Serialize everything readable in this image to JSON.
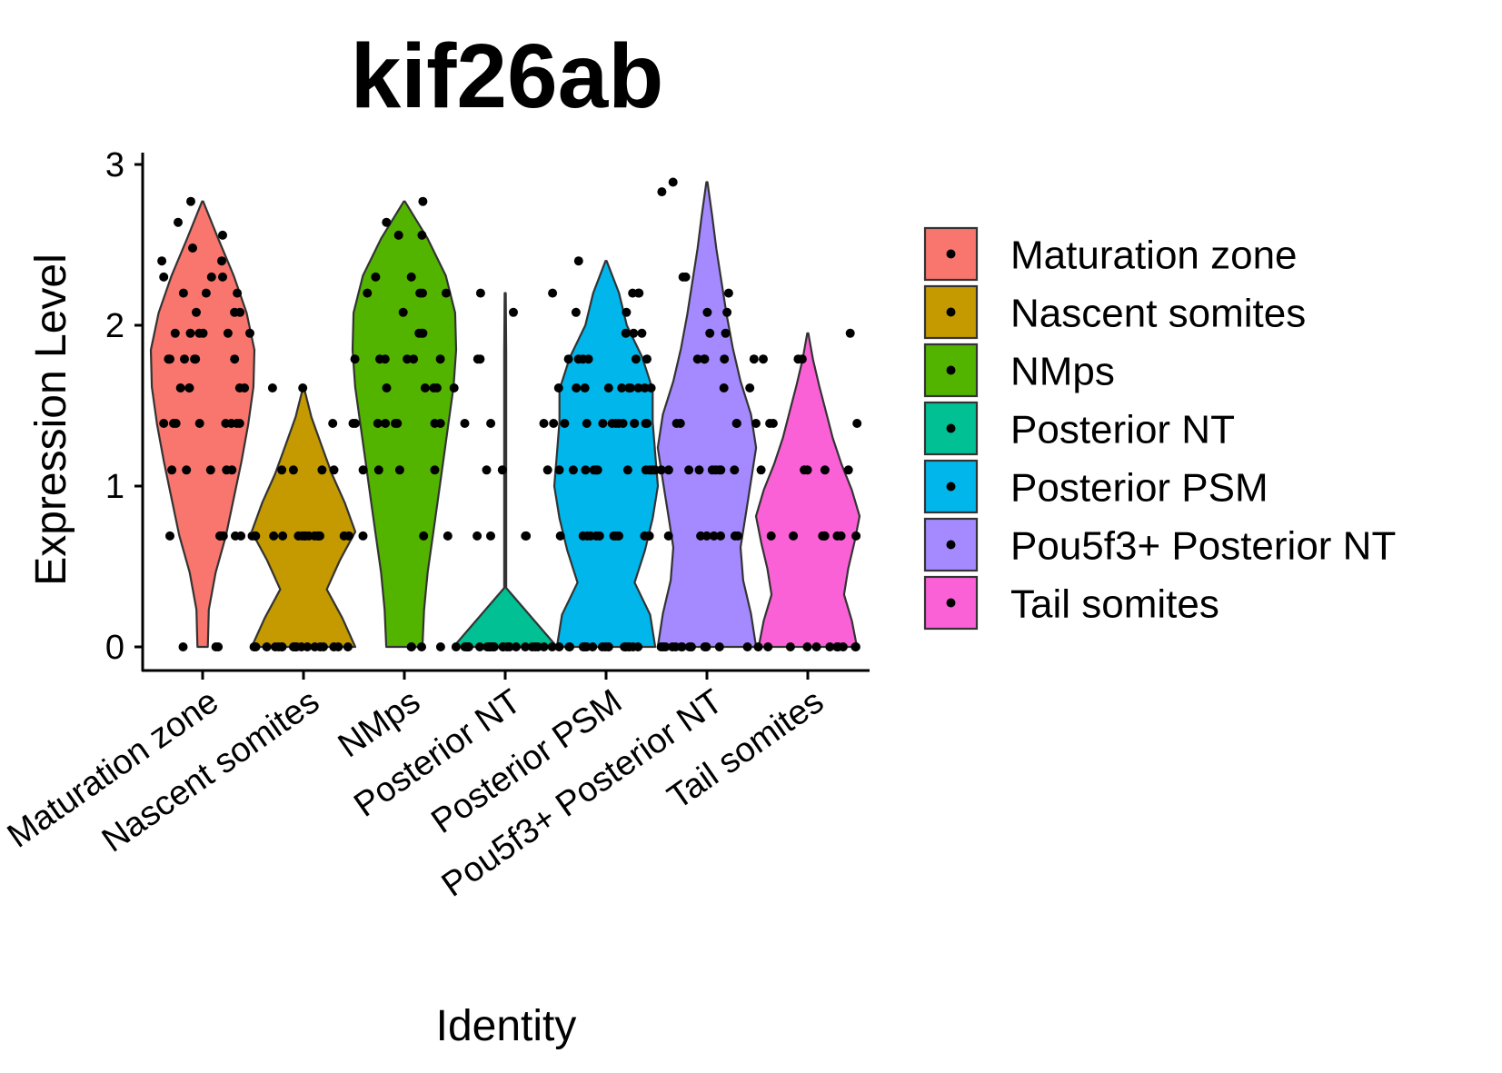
{
  "chart_data": {
    "type": "violin",
    "title": "kif26ab",
    "xlabel": "Identity",
    "ylabel": "Expression Level",
    "ylim": [
      0,
      3
    ],
    "yticks": [
      "0",
      "1",
      "2",
      "3"
    ],
    "legend_position": "right",
    "grid": false,
    "categories": [
      "Maturation zone",
      "Nascent somites",
      "NMps",
      "Posterior NT",
      "Posterior PSM",
      "Pou5f3+ Posterior NT",
      "Tail somites"
    ],
    "series": [
      {
        "name": "Maturation zone",
        "color": "#F8766D",
        "max": 2.77,
        "density": [
          0.1,
          0.12,
          0.25,
          0.45,
          0.6,
          0.75,
          0.88,
          0.98,
          1.0,
          0.85,
          0.6,
          0.3,
          0.0
        ],
        "points": [
          0,
          0,
          0,
          0.69,
          0.69,
          0.69,
          0.69,
          0.69,
          0.69,
          0.69,
          1.1,
          1.1,
          1.1,
          1.1,
          1.1,
          1.39,
          1.39,
          1.39,
          1.39,
          1.39,
          1.39,
          1.39,
          1.39,
          1.61,
          1.61,
          1.61,
          1.61,
          1.61,
          1.79,
          1.79,
          1.79,
          1.79,
          1.79,
          1.79,
          1.95,
          1.95,
          1.95,
          1.95,
          1.95,
          1.95,
          2.08,
          2.08,
          2.08,
          2.2,
          2.2,
          2.2,
          2.3,
          2.3,
          2.3,
          2.4,
          2.4,
          2.48,
          2.56,
          2.64,
          2.77
        ]
      },
      {
        "name": "Nascent somites",
        "color": "#C49A00",
        "max": 1.61,
        "density": [
          1.0,
          0.75,
          0.45,
          0.7,
          1.0,
          0.8,
          0.55,
          0.35,
          0.15,
          0.0
        ],
        "points": [
          0,
          0,
          0,
          0,
          0,
          0,
          0,
          0,
          0,
          0,
          0,
          0,
          0,
          0,
          0,
          0,
          0,
          0,
          0,
          0.69,
          0.69,
          0.69,
          0.69,
          0.69,
          0.69,
          0.69,
          0.69,
          0.69,
          0.69,
          0.69,
          0.69,
          0.69,
          0.69,
          0.69,
          1.1,
          1.1,
          1.1,
          1.1,
          1.39,
          1.39,
          1.61,
          1.61
        ]
      },
      {
        "name": "NMps",
        "color": "#53B400",
        "max": 2.77,
        "density": [
          0.35,
          0.38,
          0.45,
          0.55,
          0.65,
          0.75,
          0.85,
          0.95,
          1.0,
          0.98,
          0.8,
          0.45,
          0.0
        ],
        "points": [
          0,
          0,
          0,
          0,
          0.69,
          0.69,
          0.69,
          1.1,
          1.1,
          1.1,
          1.1,
          1.39,
          1.39,
          1.39,
          1.39,
          1.39,
          1.39,
          1.39,
          1.61,
          1.61,
          1.61,
          1.61,
          1.61,
          1.79,
          1.79,
          1.79,
          1.79,
          1.79,
          1.79,
          1.95,
          1.95,
          1.95,
          2.08,
          2.2,
          2.2,
          2.2,
          2.2,
          2.3,
          2.3,
          2.56,
          2.56,
          2.64,
          2.77
        ]
      },
      {
        "name": "Posterior NT",
        "color": "#00C094",
        "max": 2.2,
        "density": [
          1.0,
          0.02,
          0.02,
          0.02,
          0.02,
          0.02,
          0.0
        ],
        "points": [
          0,
          0,
          0,
          0,
          0,
          0,
          0,
          0,
          0,
          0,
          0,
          0,
          0,
          0,
          0,
          0,
          0,
          0,
          0,
          0,
          0,
          0,
          0,
          0,
          0,
          0.69,
          0.69,
          0.69,
          0.69,
          1.1,
          1.1,
          1.1,
          1.39,
          1.39,
          1.39,
          1.39,
          1.79,
          1.79,
          2.08,
          2.2,
          2.2
        ]
      },
      {
        "name": "Posterior PSM",
        "color": "#00B6EB",
        "max": 2.4,
        "density": [
          0.95,
          0.85,
          0.55,
          0.75,
          0.9,
          1.0,
          0.95,
          0.9,
          0.9,
          0.7,
          0.4,
          0.25,
          0.0
        ],
        "points": [
          0,
          0,
          0,
          0,
          0,
          0,
          0,
          0,
          0,
          0,
          0,
          0,
          0,
          0,
          0,
          0,
          0,
          0,
          0.69,
          0.69,
          0.69,
          0.69,
          0.69,
          0.69,
          0.69,
          0.69,
          0.69,
          0.69,
          0.69,
          0.69,
          0.69,
          0.69,
          1.1,
          1.1,
          1.1,
          1.1,
          1.1,
          1.1,
          1.1,
          1.1,
          1.1,
          1.1,
          1.1,
          1.1,
          1.1,
          1.39,
          1.39,
          1.39,
          1.39,
          1.39,
          1.39,
          1.39,
          1.39,
          1.39,
          1.39,
          1.39,
          1.61,
          1.61,
          1.61,
          1.61,
          1.61,
          1.61,
          1.61,
          1.61,
          1.61,
          1.61,
          1.79,
          1.79,
          1.79,
          1.79,
          1.79,
          1.79,
          1.95,
          1.95,
          1.95,
          2.08,
          2.08,
          2.2,
          2.2,
          2.2,
          2.4
        ]
      },
      {
        "name": "Pou5f3+ Posterior NT",
        "color": "#A58AFF",
        "max": 2.89,
        "density": [
          0.95,
          0.85,
          0.7,
          0.65,
          0.75,
          0.85,
          0.95,
          0.85,
          0.65,
          0.5,
          0.38,
          0.28,
          0.18,
          0.1,
          0.0
        ],
        "points": [
          0,
          0,
          0,
          0,
          0,
          0,
          0,
          0,
          0,
          0,
          0,
          0,
          0,
          0.69,
          0.69,
          0.69,
          0.69,
          0.69,
          0.69,
          0.69,
          1.1,
          1.1,
          1.1,
          1.1,
          1.1,
          1.1,
          1.1,
          1.1,
          1.1,
          1.39,
          1.39,
          1.39,
          1.39,
          1.39,
          1.61,
          1.61,
          1.79,
          1.79,
          1.79,
          1.79,
          1.79,
          1.95,
          1.95,
          2.08,
          2.08,
          2.2,
          2.3,
          2.3,
          2.83,
          2.89
        ]
      },
      {
        "name": "Tail somites",
        "color": "#FB61D7",
        "max": 1.95,
        "density": [
          0.95,
          0.85,
          0.7,
          0.78,
          0.9,
          1.0,
          0.85,
          0.65,
          0.48,
          0.35,
          0.22,
          0.1,
          0.0
        ],
        "points": [
          0,
          0,
          0,
          0,
          0,
          0,
          0,
          0,
          0,
          0,
          0,
          0.69,
          0.69,
          0.69,
          0.69,
          0.69,
          0.69,
          0.69,
          0.69,
          1.1,
          1.1,
          1.1,
          1.1,
          1.1,
          1.39,
          1.39,
          1.39,
          1.79,
          1.79,
          1.79,
          1.95
        ]
      }
    ]
  }
}
